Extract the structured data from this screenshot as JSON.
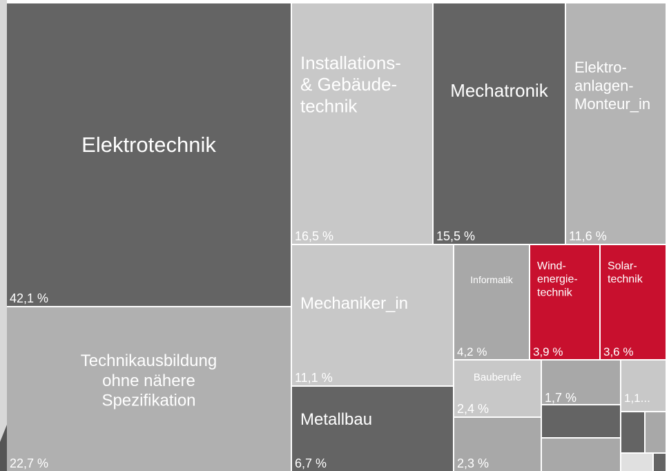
{
  "chart_data": {
    "type": "treemap",
    "categories": [
      "Elektrotechnik",
      "Technikausbildung\nohne nähere\nSpezifikation",
      "Installations-\n& Gebäude-\ntechnik",
      "Mechatronik",
      "Elektro-\nanlagen-\nMonteur_in",
      "Mechaniker_in",
      "Metallbau",
      "Informatik",
      "Wind-\nenergie-\ntechnik",
      "Solar-\ntechnik",
      "Bauberufe",
      null,
      null,
      null,
      null,
      null,
      null,
      null,
      null,
      null
    ],
    "values": [
      42.1,
      22.7,
      16.5,
      15.5,
      11.6,
      11.1,
      6.7,
      4.2,
      3.9,
      3.6,
      2.4,
      2.3,
      1.7,
      1.2,
      1.2,
      1.1,
      0.4,
      0.4,
      0.3,
      0.1
    ],
    "value_labels": [
      "42,1 %",
      "22,7 %",
      "16,5 %",
      "15,5 %",
      "11,6 %",
      "11,1 %",
      "6,7 %",
      "4,2 %",
      "3,9 %",
      "3,6 %",
      "2,4 %",
      "2,3 %",
      "1,7 %",
      null,
      null,
      "1,1...",
      null,
      null,
      null,
      null
    ],
    "colors": [
      "#646464",
      "#b0b0b0",
      "#c8c8c8",
      "#646464",
      "#b4b4b4",
      "#c8c8c8",
      "#646464",
      "#a8a8a8",
      "#c8102e",
      "#c8102e",
      "#c8c8c8",
      "#a8a8a8",
      "#a8a8a8",
      "#646464",
      "#a8a8a8",
      "#c8c8c8",
      "#646464",
      "#a8a8a8",
      "#e0e0e0",
      "#646464"
    ]
  }
}
